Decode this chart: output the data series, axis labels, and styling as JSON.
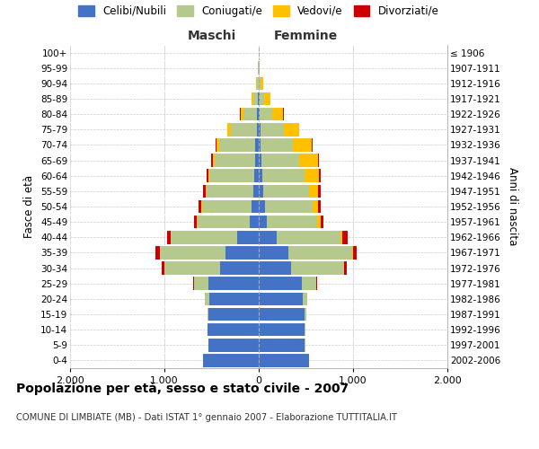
{
  "age_groups": [
    "0-4",
    "5-9",
    "10-14",
    "15-19",
    "20-24",
    "25-29",
    "30-34",
    "35-39",
    "40-44",
    "45-49",
    "50-54",
    "55-59",
    "60-64",
    "65-69",
    "70-74",
    "75-79",
    "80-84",
    "85-89",
    "90-94",
    "95-99",
    "100+"
  ],
  "birth_years": [
    "2002-2006",
    "1997-2001",
    "1992-1996",
    "1987-1991",
    "1982-1986",
    "1977-1981",
    "1972-1976",
    "1967-1971",
    "1962-1966",
    "1957-1961",
    "1952-1956",
    "1947-1951",
    "1942-1946",
    "1937-1941",
    "1932-1936",
    "1927-1931",
    "1922-1926",
    "1917-1921",
    "1912-1916",
    "1907-1911",
    "≤ 1906"
  ],
  "maschi": {
    "celibi": [
      590,
      530,
      540,
      530,
      520,
      530,
      410,
      350,
      230,
      100,
      80,
      60,
      50,
      40,
      35,
      20,
      15,
      5,
      2,
      0,
      0
    ],
    "coniugati": [
      2,
      2,
      5,
      10,
      50,
      160,
      590,
      700,
      700,
      550,
      520,
      490,
      470,
      430,
      380,
      280,
      150,
      55,
      18,
      5,
      2
    ],
    "vedovi": [
      0,
      0,
      0,
      0,
      0,
      0,
      2,
      2,
      5,
      5,
      8,
      10,
      15,
      20,
      30,
      30,
      30,
      20,
      5,
      2,
      0
    ],
    "divorziati": [
      0,
      0,
      0,
      0,
      5,
      8,
      30,
      40,
      40,
      35,
      30,
      30,
      20,
      12,
      8,
      5,
      2,
      0,
      0,
      0,
      0
    ]
  },
  "femmine": {
    "nubili": [
      530,
      490,
      490,
      490,
      470,
      460,
      340,
      310,
      190,
      90,
      70,
      50,
      40,
      30,
      20,
      15,
      10,
      5,
      2,
      0,
      0
    ],
    "coniugate": [
      2,
      2,
      2,
      10,
      40,
      150,
      560,
      680,
      680,
      530,
      500,
      480,
      450,
      400,
      340,
      250,
      130,
      50,
      15,
      5,
      2
    ],
    "vedove": [
      0,
      0,
      0,
      0,
      2,
      2,
      5,
      10,
      20,
      35,
      60,
      100,
      150,
      200,
      200,
      160,
      120,
      70,
      30,
      8,
      2
    ],
    "divorziate": [
      0,
      0,
      0,
      0,
      5,
      8,
      25,
      40,
      50,
      35,
      30,
      30,
      20,
      10,
      8,
      5,
      2,
      0,
      0,
      0,
      0
    ]
  },
  "colors": {
    "celibi_nubili": "#4472c4",
    "coniugati": "#b5c98e",
    "vedovi": "#ffc000",
    "divorziati": "#cc0000"
  },
  "xlim": 2000,
  "title": "Popolazione per età, sesso e stato civile - 2007",
  "subtitle": "COMUNE DI LIMBIATE (MB) - Dati ISTAT 1° gennaio 2007 - Elaborazione TUTTITALIA.IT",
  "ylabel_left": "Fasce di età",
  "ylabel_right": "Anni di nascita",
  "xlabel_left": "Maschi",
  "xlabel_right": "Femmine",
  "legend_labels": [
    "Celibi/Nubili",
    "Coniugati/e",
    "Vedovi/e",
    "Divorziati/e"
  ],
  "xtick_labels": [
    "2.000",
    "1.000",
    "0",
    "1.000",
    "2.000"
  ],
  "xtick_vals": [
    -2000,
    -1000,
    0,
    1000,
    2000
  ],
  "background_color": "#ffffff",
  "plot_bg_color": "#ffffff"
}
